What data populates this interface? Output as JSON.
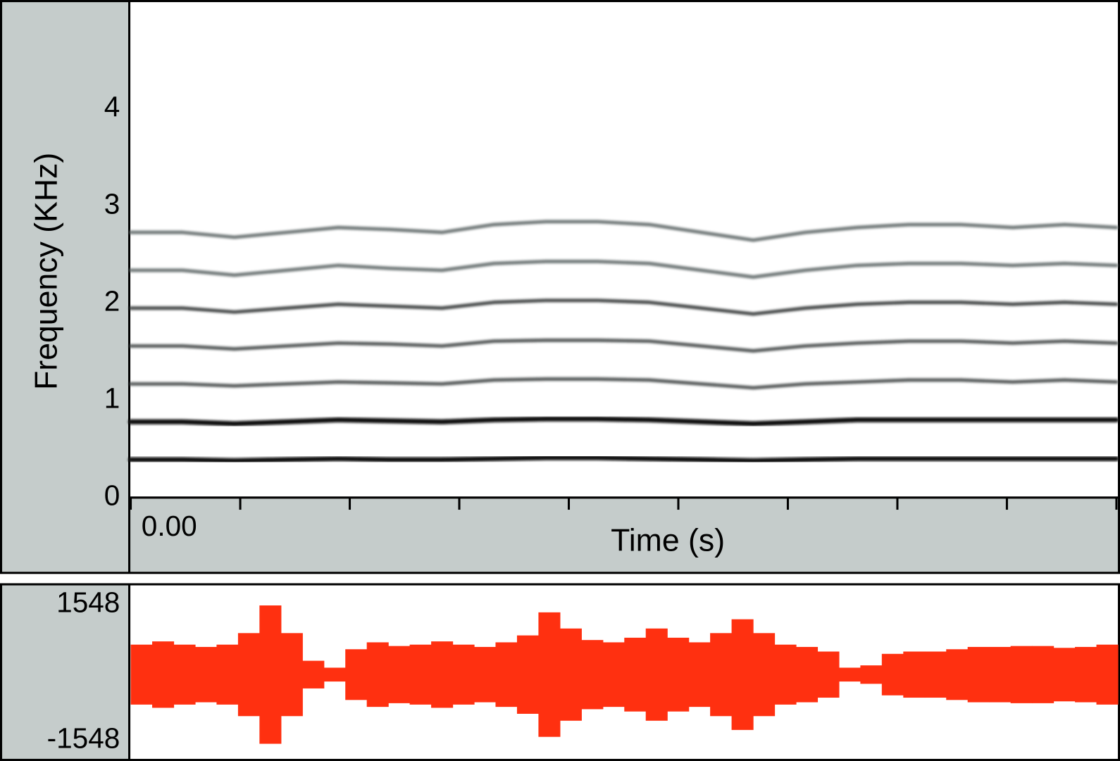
{
  "chart_data": [
    {
      "type": "spectrogram",
      "y_label": "Frequency (KHz)",
      "x_label": "Time (s)",
      "xticks": [
        {
          "value": 0,
          "label": "0.00"
        }
      ],
      "ylim": [
        0,
        5.1
      ],
      "yticks": [
        0,
        1,
        2,
        3,
        4
      ],
      "categories": [
        null,
        null,
        null,
        null,
        null,
        null,
        null,
        null,
        null,
        null,
        null,
        null,
        null,
        null,
        null,
        null,
        null,
        null,
        null,
        null
      ],
      "series": [
        {
          "color": "#111111",
          "values": [
            0.39,
            0.39,
            0.38,
            0.39,
            0.4,
            0.39,
            0.39,
            0.4,
            0.41,
            0.41,
            0.4,
            0.39,
            0.38,
            0.39,
            0.4,
            0.4,
            0.4,
            0.4,
            0.4,
            0.4
          ]
        },
        {
          "color": "#111111",
          "values": [
            0.78,
            0.78,
            0.76,
            0.78,
            0.8,
            0.79,
            0.78,
            0.8,
            0.81,
            0.81,
            0.8,
            0.78,
            0.76,
            0.78,
            0.8,
            0.8,
            0.8,
            0.8,
            0.8,
            0.8
          ]
        },
        {
          "color": "#3a3f3f",
          "values": [
            1.17,
            1.17,
            1.15,
            1.17,
            1.19,
            1.18,
            1.17,
            1.21,
            1.22,
            1.22,
            1.21,
            1.17,
            1.13,
            1.17,
            1.19,
            1.21,
            1.21,
            1.19,
            1.21,
            1.19
          ]
        },
        {
          "color": "#3a3f3f",
          "values": [
            1.56,
            1.56,
            1.53,
            1.56,
            1.59,
            1.58,
            1.56,
            1.61,
            1.62,
            1.62,
            1.61,
            1.56,
            1.51,
            1.56,
            1.59,
            1.61,
            1.61,
            1.59,
            1.61,
            1.59
          ]
        },
        {
          "color": "#2a2f2f",
          "values": [
            1.95,
            1.95,
            1.91,
            1.95,
            1.99,
            1.97,
            1.95,
            2.01,
            2.03,
            2.03,
            2.01,
            1.95,
            1.89,
            1.95,
            1.99,
            2.01,
            2.01,
            1.99,
            2.01,
            1.99
          ]
        },
        {
          "color": "#5a6363",
          "values": [
            2.34,
            2.34,
            2.29,
            2.34,
            2.39,
            2.36,
            2.34,
            2.41,
            2.43,
            2.43,
            2.41,
            2.34,
            2.27,
            2.34,
            2.39,
            2.41,
            2.41,
            2.39,
            2.41,
            2.39
          ]
        },
        {
          "color": "#5a6363",
          "values": [
            2.73,
            2.73,
            2.68,
            2.73,
            2.78,
            2.76,
            2.73,
            2.81,
            2.84,
            2.84,
            2.81,
            2.73,
            2.65,
            2.73,
            2.78,
            2.81,
            2.81,
            2.78,
            2.81,
            2.78
          ]
        }
      ]
    },
    {
      "type": "waveform",
      "ylim": [
        -1548,
        1548
      ],
      "yticks": [
        1548,
        -1548
      ],
      "color": "#ff3010",
      "values": [
        650,
        720,
        650,
        600,
        650,
        900,
        1500,
        900,
        300,
        150,
        550,
        700,
        620,
        650,
        720,
        650,
        600,
        700,
        850,
        1350,
        1000,
        750,
        700,
        800,
        1000,
        800,
        700,
        900,
        1200,
        900,
        650,
        600,
        500,
        150,
        200,
        450,
        500,
        500,
        550,
        600,
        600,
        620,
        620,
        580,
        600,
        650
      ]
    }
  ]
}
